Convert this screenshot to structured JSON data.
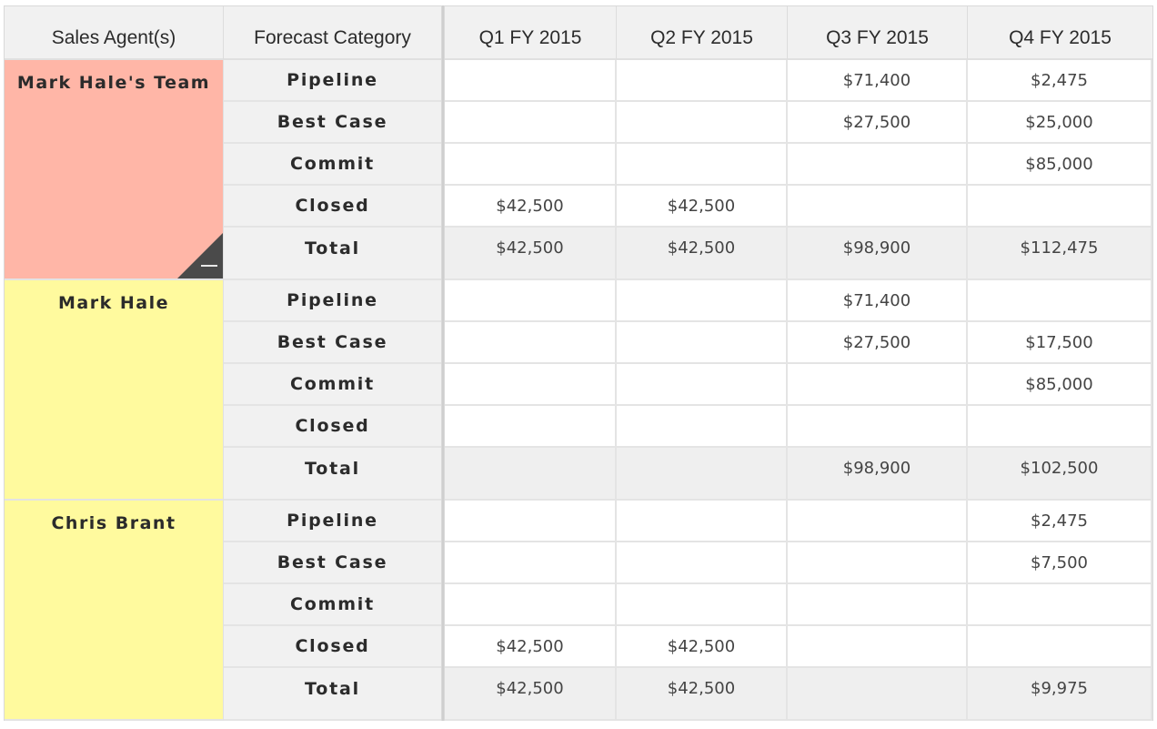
{
  "headers": {
    "agent": "Sales Agent(s)",
    "category": "Forecast Category",
    "quarters": [
      "Q1 FY 2015",
      "Q2 FY 2015",
      "Q3 FY 2015",
      "Q4 FY 2015"
    ]
  },
  "groups": [
    {
      "agent": "Mark Hale's Team",
      "kind": "team",
      "collapsible": true,
      "rows": [
        {
          "category": "Pipeline",
          "values": [
            "",
            "",
            "$71,400",
            "$2,475"
          ]
        },
        {
          "category": "Best Case",
          "values": [
            "",
            "",
            "$27,500",
            "$25,000"
          ]
        },
        {
          "category": "Commit",
          "values": [
            "",
            "",
            "",
            "$85,000"
          ]
        },
        {
          "category": "Closed",
          "values": [
            "$42,500",
            "$42,500",
            "",
            ""
          ]
        },
        {
          "category": "Total",
          "values": [
            "$42,500",
            "$42,500",
            "$98,900",
            "$112,475"
          ]
        }
      ]
    },
    {
      "agent": "Mark Hale",
      "kind": "person",
      "collapsible": false,
      "rows": [
        {
          "category": "Pipeline",
          "values": [
            "",
            "",
            "$71,400",
            ""
          ]
        },
        {
          "category": "Best Case",
          "values": [
            "",
            "",
            "$27,500",
            "$17,500"
          ]
        },
        {
          "category": "Commit",
          "values": [
            "",
            "",
            "",
            "$85,000"
          ]
        },
        {
          "category": "Closed",
          "values": [
            "",
            "",
            "",
            ""
          ]
        },
        {
          "category": "Total",
          "values": [
            "",
            "",
            "$98,900",
            "$102,500"
          ]
        }
      ]
    },
    {
      "agent": "Chris Brant",
      "kind": "person",
      "collapsible": false,
      "rows": [
        {
          "category": "Pipeline",
          "values": [
            "",
            "",
            "",
            "$2,475"
          ]
        },
        {
          "category": "Best Case",
          "values": [
            "",
            "",
            "",
            "$7,500"
          ]
        },
        {
          "category": "Commit",
          "values": [
            "",
            "",
            "",
            ""
          ]
        },
        {
          "category": "Closed",
          "values": [
            "$42,500",
            "$42,500",
            "",
            ""
          ]
        },
        {
          "category": "Total",
          "values": [
            "$42,500",
            "$42,500",
            "",
            "$9,975"
          ]
        }
      ]
    }
  ],
  "icons": {
    "collapse": "collapse-minus-icon"
  },
  "colors": {
    "team_bg": "#ffb6a7",
    "person_bg": "#fffa9e",
    "header_bg": "#f1f1f1",
    "total_bg": "#efefef"
  }
}
